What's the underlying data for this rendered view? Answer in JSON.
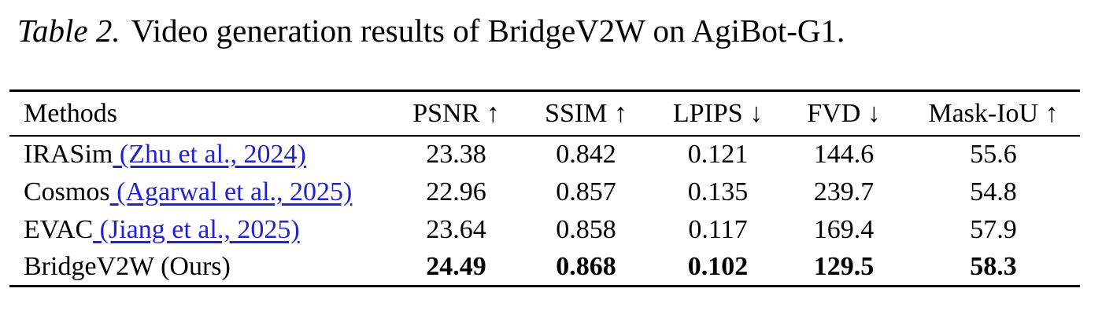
{
  "caption": {
    "label": "Table 2.",
    "text": "Video generation results of BridgeV2W on AgiBot-G1."
  },
  "table": {
    "link_color": "#2222cc",
    "columns": [
      "Methods",
      "PSNR ↑",
      "SSIM ↑",
      "LPIPS ↓",
      "FVD ↓",
      "Mask-IoU ↑"
    ],
    "rows": [
      {
        "method": "IRASim",
        "citation": " (Zhu et al., 2024)",
        "values": [
          "23.38",
          "0.842",
          "0.121",
          "144.6",
          "55.6"
        ],
        "bold": false
      },
      {
        "method": "Cosmos",
        "citation": " (Agarwal et al., 2025)",
        "values": [
          "22.96",
          "0.857",
          "0.135",
          "239.7",
          "54.8"
        ],
        "bold": false
      },
      {
        "method": "EVAC",
        "citation": " (Jiang et al., 2025)",
        "values": [
          "23.64",
          "0.858",
          "0.117",
          "169.4",
          "57.9"
        ],
        "bold": false
      },
      {
        "method": "BridgeV2W (Ours)",
        "citation": "",
        "values": [
          "24.49",
          "0.868",
          "0.102",
          "129.5",
          "58.3"
        ],
        "bold": true
      }
    ]
  },
  "chart_data": {
    "type": "table",
    "title": "Table 2. Video generation results of BridgeV2W on AgiBot-G1.",
    "columns": [
      "Methods",
      "PSNR ↑",
      "SSIM ↑",
      "LPIPS ↓",
      "FVD ↓",
      "Mask-IoU ↑"
    ],
    "rows": [
      [
        "IRASim (Zhu et al., 2024)",
        23.38,
        0.842,
        0.121,
        144.6,
        55.6
      ],
      [
        "Cosmos (Agarwal et al., 2025)",
        22.96,
        0.857,
        0.135,
        239.7,
        54.8
      ],
      [
        "EVAC (Jiang et al., 2025)",
        23.64,
        0.858,
        0.117,
        169.4,
        57.9
      ],
      [
        "BridgeV2W (Ours)",
        24.49,
        0.868,
        0.102,
        129.5,
        58.3
      ]
    ],
    "best_row": "BridgeV2W (Ours)"
  }
}
